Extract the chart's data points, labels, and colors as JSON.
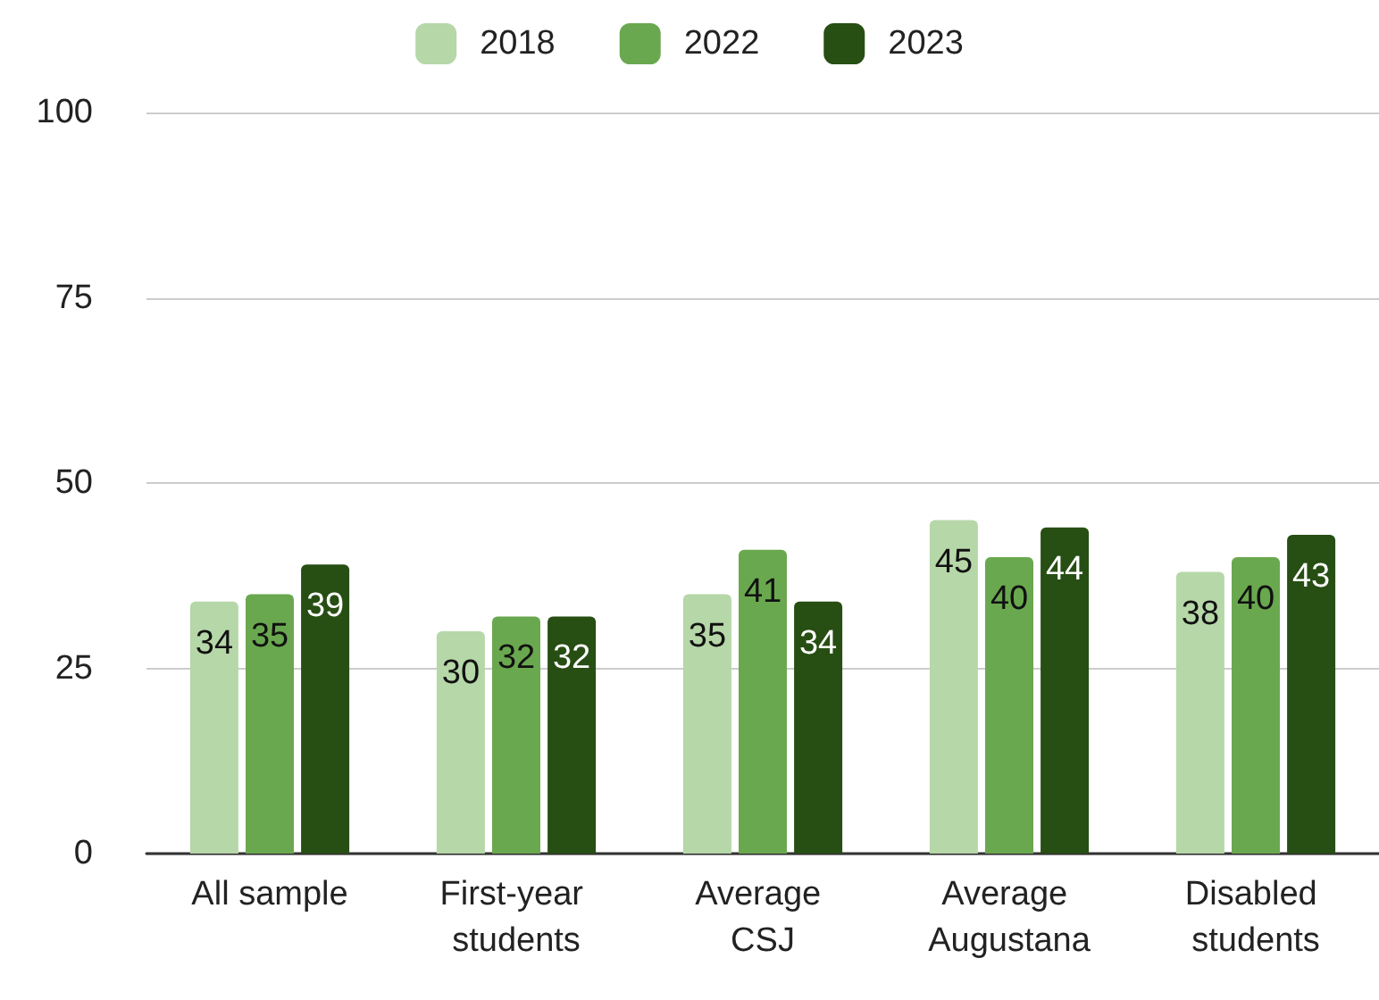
{
  "chart_data": {
    "type": "bar",
    "categories": [
      "All sample",
      "First-year students",
      "Average CSJ",
      "Average Augustana",
      "Disabled students"
    ],
    "series": [
      {
        "name": "2018",
        "color": "#b6d7a8",
        "values": [
          34,
          30,
          35,
          45,
          38
        ]
      },
      {
        "name": "2022",
        "color": "#6aa84f",
        "values": [
          35,
          32,
          41,
          40,
          40
        ]
      },
      {
        "name": "2023",
        "color": "#274e13",
        "values": [
          39,
          32,
          34,
          44,
          43
        ]
      }
    ],
    "ylim": [
      0,
      100
    ],
    "yticks": [
      0,
      25,
      50,
      75,
      100
    ],
    "grid": "y",
    "legend": "top",
    "data_labels": true
  }
}
